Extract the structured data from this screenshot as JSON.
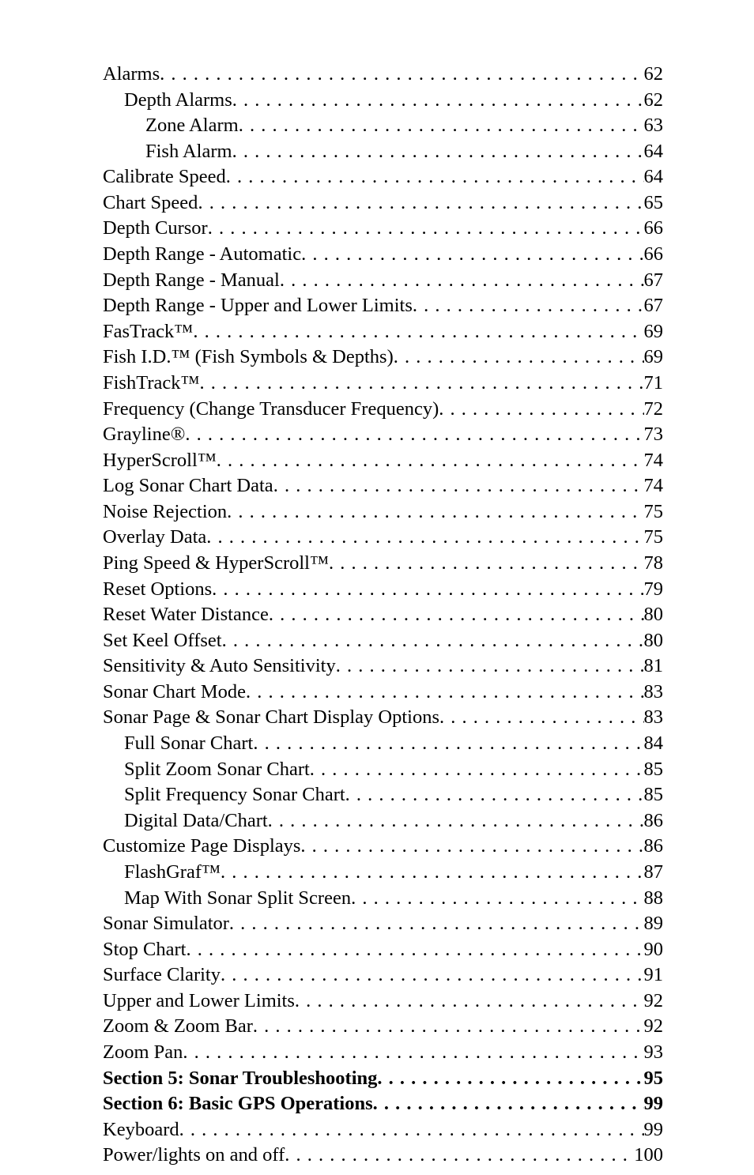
{
  "dots": ". . . . . . . . . . . . . . . . . . . . . . . . . . . . . . . . . . . . . . . . . . . . . . . . . . . . . . . . . . . . . . . . . . . . . . . . . . . . . . . . . . . . . . . . . . . . . . . . . . . . . . . . . . . . . . . . . . . . . . . . . . . . . . . . . . . . . . . .",
  "toc": [
    {
      "title": "Alarms",
      "page": "62",
      "indent": 0,
      "bold": false
    },
    {
      "title": "Depth Alarms",
      "page": "62",
      "indent": 1,
      "bold": false
    },
    {
      "title": "Zone Alarm",
      "page": "63",
      "indent": 2,
      "bold": false
    },
    {
      "title": "Fish Alarm",
      "page": "64",
      "indent": 2,
      "bold": false
    },
    {
      "title": "Calibrate Speed",
      "page": "64",
      "indent": 0,
      "bold": false
    },
    {
      "title": "Chart Speed",
      "page": "65",
      "indent": 0,
      "bold": false
    },
    {
      "title": "Depth Cursor",
      "page": "66",
      "indent": 0,
      "bold": false
    },
    {
      "title": "Depth Range - Automatic",
      "page": "66",
      "indent": 0,
      "bold": false
    },
    {
      "title": "Depth Range - Manual",
      "page": "67",
      "indent": 0,
      "bold": false
    },
    {
      "title": "Depth Range - Upper and Lower Limits",
      "page": "67",
      "indent": 0,
      "bold": false
    },
    {
      "title": "FasTrack™",
      "page": "69",
      "indent": 0,
      "bold": false
    },
    {
      "title": "Fish I.D.™ (Fish Symbols & Depths)",
      "page": "69",
      "indent": 0,
      "bold": false
    },
    {
      "title": "FishTrack™",
      "page": "71",
      "indent": 0,
      "bold": false
    },
    {
      "title": "Frequency (Change Transducer Frequency)",
      "page": "72",
      "indent": 0,
      "bold": false
    },
    {
      "title": "Grayline®",
      "page": "73",
      "indent": 0,
      "bold": false
    },
    {
      "title": "HyperScroll™",
      "page": "74",
      "indent": 0,
      "bold": false
    },
    {
      "title": "Log Sonar Chart Data",
      "page": "74",
      "indent": 0,
      "bold": false
    },
    {
      "title": "Noise Rejection",
      "page": "75",
      "indent": 0,
      "bold": false
    },
    {
      "title": "Overlay Data",
      "page": "75",
      "indent": 0,
      "bold": false
    },
    {
      "title": "Ping Speed & HyperScroll™",
      "page": "78",
      "indent": 0,
      "bold": false
    },
    {
      "title": "Reset Options",
      "page": "79",
      "indent": 0,
      "bold": false
    },
    {
      "title": "Reset Water Distance",
      "page": "80",
      "indent": 0,
      "bold": false
    },
    {
      "title": "Set Keel Offset",
      "page": "80",
      "indent": 0,
      "bold": false
    },
    {
      "title": "Sensitivity & Auto Sensitivity",
      "page": "81",
      "indent": 0,
      "bold": false
    },
    {
      "title": "Sonar Chart Mode",
      "page": "83",
      "indent": 0,
      "bold": false
    },
    {
      "title": "Sonar Page & Sonar Chart Display Options",
      "page": "83",
      "indent": 0,
      "bold": false
    },
    {
      "title": "Full Sonar Chart",
      "page": "84",
      "indent": 1,
      "bold": false
    },
    {
      "title": "Split Zoom Sonar Chart",
      "page": "85",
      "indent": 1,
      "bold": false
    },
    {
      "title": "Split Frequency Sonar Chart",
      "page": "85",
      "indent": 1,
      "bold": false
    },
    {
      "title": "Digital Data/Chart",
      "page": "86",
      "indent": 1,
      "bold": false
    },
    {
      "title": "Customize Page Displays",
      "page": "86",
      "indent": 0,
      "bold": false
    },
    {
      "title": "FlashGraf™",
      "page": "87",
      "indent": 1,
      "bold": false
    },
    {
      "title": "Map With Sonar Split Screen",
      "page": "88",
      "indent": 1,
      "bold": false
    },
    {
      "title": "Sonar Simulator",
      "page": "89",
      "indent": 0,
      "bold": false
    },
    {
      "title": "Stop Chart",
      "page": "90",
      "indent": 0,
      "bold": false
    },
    {
      "title": "Surface Clarity",
      "page": "91",
      "indent": 0,
      "bold": false
    },
    {
      "title": "Upper and Lower Limits",
      "page": "92",
      "indent": 0,
      "bold": false
    },
    {
      "title": "Zoom & Zoom Bar",
      "page": "92",
      "indent": 0,
      "bold": false
    },
    {
      "title": "Zoom Pan",
      "page": "93",
      "indent": 0,
      "bold": false
    },
    {
      "title": "Section 5: Sonar Troubleshooting",
      "page": "95",
      "indent": 0,
      "bold": true
    },
    {
      "title": "Section 6: Basic GPS Operations",
      "page": "99",
      "indent": 0,
      "bold": true
    },
    {
      "title": "Keyboard",
      "page": "99",
      "indent": 0,
      "bold": false
    },
    {
      "title": "Power/lights on and off",
      "page": "100",
      "indent": 0,
      "bold": false
    }
  ]
}
